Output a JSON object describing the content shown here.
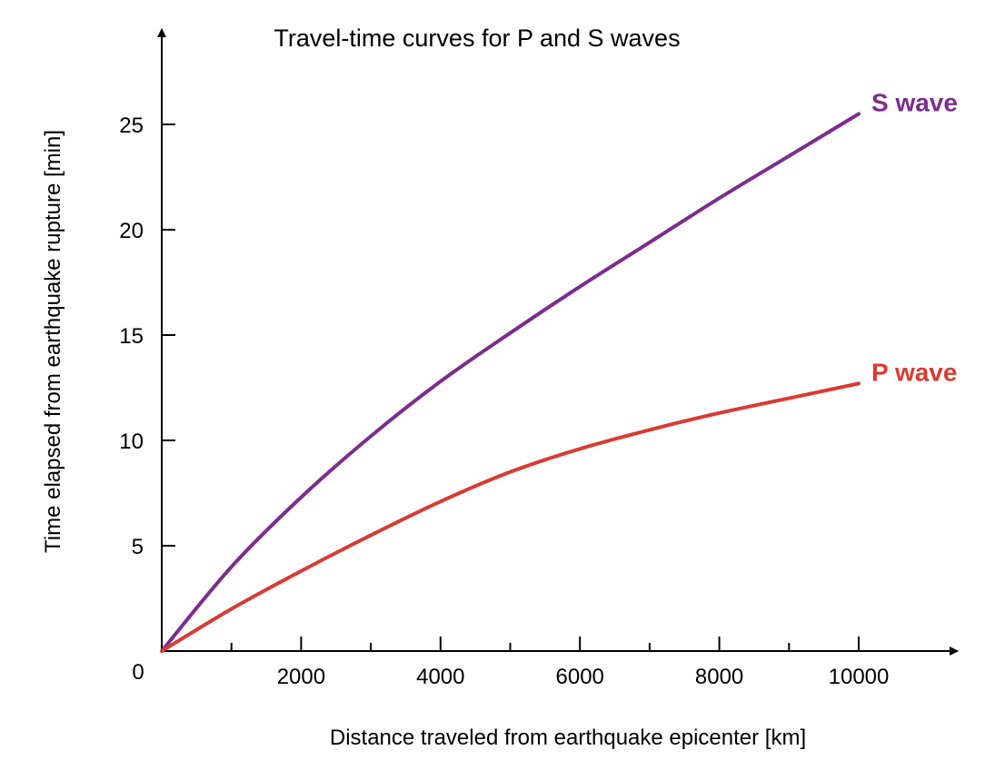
{
  "chart_data": {
    "type": "line",
    "title": "Travel-time curves for P and S waves",
    "xlabel": "Distance traveled from earthquake epicenter [km]",
    "ylabel": "Time elapsed from earthquake rupture [min]",
    "xlim": [
      0,
      11400
    ],
    "ylim": [
      0,
      29
    ],
    "x_ticks": [
      2000,
      4000,
      6000,
      8000,
      10000
    ],
    "x_minor_ticks": [
      1000,
      3000,
      5000,
      7000,
      9000
    ],
    "y_ticks": [
      5,
      10,
      15,
      20,
      25
    ],
    "origin_label": "0",
    "grid": false,
    "legend": "inline labels at line ends",
    "series": [
      {
        "name": "S wave",
        "color": "#7b2d8e",
        "x": [
          0,
          1000,
          2000,
          3000,
          4000,
          5000,
          6000,
          7000,
          8000,
          9000,
          10000
        ],
        "y": [
          0,
          4.0,
          7.3,
          10.2,
          12.8,
          15.1,
          17.3,
          19.4,
          21.5,
          23.5,
          25.5
        ]
      },
      {
        "name": "P wave",
        "color": "#d93a32",
        "x": [
          0,
          1000,
          2000,
          3000,
          4000,
          5000,
          6000,
          7000,
          8000,
          9000,
          10000
        ],
        "y": [
          0,
          2.0,
          3.8,
          5.5,
          7.1,
          8.5,
          9.6,
          10.5,
          11.3,
          12.0,
          12.7
        ]
      }
    ]
  }
}
